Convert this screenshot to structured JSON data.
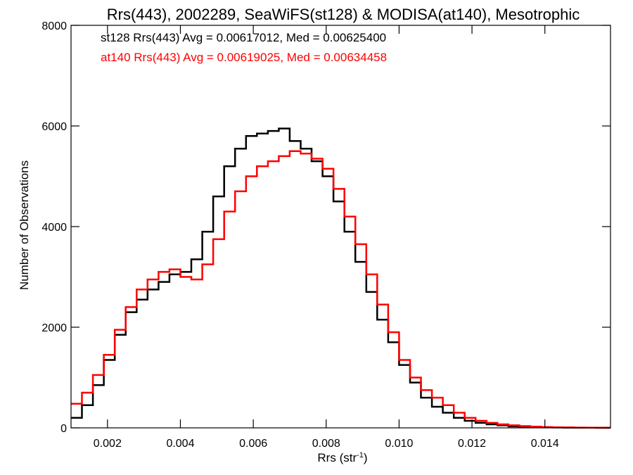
{
  "chart_data": {
    "type": "line",
    "step": true,
    "title": "Rrs(443), 2002289, SeaWiFS(st128) & MODISA(at140), Mesotrophic",
    "xlabel_main": "Rrs (str",
    "xlabel_sup": "-1",
    "xlabel_end": ")",
    "ylabel": "Number of Observations",
    "xlim": [
      0.001,
      0.0158
    ],
    "ylim": [
      0,
      8000
    ],
    "xticks": [
      0.002,
      0.004,
      0.006,
      0.008,
      0.01,
      0.012,
      0.014
    ],
    "xtick_labels": [
      "0.002",
      "0.004",
      "0.006",
      "0.008",
      "0.010",
      "0.012",
      "0.014"
    ],
    "yticks": [
      0,
      2000,
      4000,
      6000,
      8000
    ],
    "ytick_labels": [
      "0",
      "2000",
      "4000",
      "6000",
      "8000"
    ],
    "annotations": [
      {
        "text": "st128 Rrs(443) Avg = 0.00617012, Med = 0.00625400",
        "color": "#000000"
      },
      {
        "text": "at140 Rrs(443) Avg = 0.00619025, Med = 0.00634458",
        "color": "#ff0000"
      }
    ],
    "series": [
      {
        "color": "#000000",
        "x": [
          0.001,
          0.0013,
          0.0016,
          0.0019,
          0.0022,
          0.0025,
          0.0028,
          0.0031,
          0.0034,
          0.0037,
          0.004,
          0.0043,
          0.0046,
          0.0049,
          0.0052,
          0.0055,
          0.0058,
          0.0061,
          0.0064,
          0.0067,
          0.007,
          0.0073,
          0.0076,
          0.0079,
          0.0082,
          0.0085,
          0.0088,
          0.0091,
          0.0094,
          0.0097,
          0.01,
          0.0103,
          0.0106,
          0.0109,
          0.0112,
          0.0115,
          0.0118,
          0.0121,
          0.0124,
          0.0127,
          0.013,
          0.0133,
          0.0136,
          0.0139,
          0.0142,
          0.0145,
          0.0148,
          0.0151,
          0.0154,
          0.0157
        ],
        "y": [
          200,
          450,
          850,
          1350,
          1850,
          2300,
          2550,
          2750,
          2900,
          3050,
          3100,
          3350,
          3900,
          4600,
          5200,
          5550,
          5800,
          5850,
          5900,
          5950,
          5700,
          5550,
          5300,
          5000,
          4500,
          3900,
          3300,
          2700,
          2150,
          1700,
          1250,
          900,
          600,
          420,
          300,
          200,
          140,
          100,
          70,
          50,
          30,
          20,
          15,
          10,
          8,
          5,
          4,
          3,
          2,
          1
        ]
      },
      {
        "color": "#ff0000",
        "x": [
          0.001,
          0.0013,
          0.0016,
          0.0019,
          0.0022,
          0.0025,
          0.0028,
          0.0031,
          0.0034,
          0.0037,
          0.004,
          0.0043,
          0.0046,
          0.0049,
          0.0052,
          0.0055,
          0.0058,
          0.0061,
          0.0064,
          0.0067,
          0.007,
          0.0073,
          0.0076,
          0.0079,
          0.0082,
          0.0085,
          0.0088,
          0.0091,
          0.0094,
          0.0097,
          0.01,
          0.0103,
          0.0106,
          0.0109,
          0.0112,
          0.0115,
          0.0118,
          0.0121,
          0.0124,
          0.0127,
          0.013,
          0.0133,
          0.0136,
          0.0139,
          0.0142,
          0.0145,
          0.0148,
          0.0151,
          0.0154,
          0.0157
        ],
        "y": [
          480,
          700,
          1050,
          1450,
          1950,
          2400,
          2750,
          2950,
          3100,
          3150,
          3000,
          2950,
          3250,
          3750,
          4300,
          4700,
          5000,
          5200,
          5300,
          5400,
          5500,
          5450,
          5350,
          5150,
          4750,
          4200,
          3650,
          3050,
          2450,
          1900,
          1350,
          1000,
          750,
          600,
          450,
          300,
          200,
          140,
          100,
          70,
          50,
          35,
          25,
          15,
          10,
          8,
          5,
          3,
          2,
          1
        ]
      }
    ]
  }
}
